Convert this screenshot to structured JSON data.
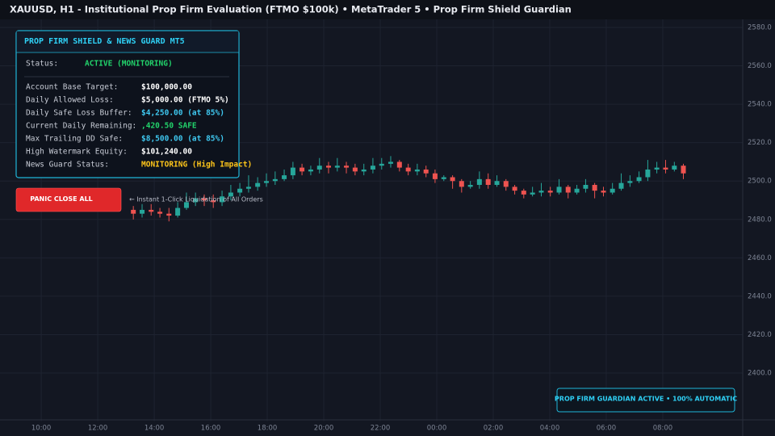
{
  "header": {
    "title": "XAUUSD, H1 - Institutional Prop Firm Evaluation (FTMO $100k)  •  MetaTrader 5  •  Prop Firm Shield Guardian"
  },
  "chart_data": {
    "type": "candlestick",
    "up_color": "#26a69a",
    "down_color": "#ef5350",
    "grid": true,
    "ylim": [
      2375,
      2585
    ],
    "yticks": [
      {
        "value": 2400,
        "label": "2400.0"
      },
      {
        "value": 2420,
        "label": "2420.0"
      },
      {
        "value": 2440,
        "label": "2440.0"
      },
      {
        "value": 2460,
        "label": "2460.0"
      },
      {
        "value": 2480,
        "label": "2480.0"
      },
      {
        "value": 2500,
        "label": "2500.0"
      },
      {
        "value": 2520,
        "label": "2520.0"
      },
      {
        "value": 2540,
        "label": "2540.0"
      },
      {
        "value": 2560,
        "label": "2560.0"
      },
      {
        "value": 2580,
        "label": "2580.0"
      }
    ],
    "xlim": [
      -1.46,
      24.83
    ],
    "xticks": [
      {
        "value": 0,
        "label": "10:00"
      },
      {
        "value": 2,
        "label": "12:00"
      },
      {
        "value": 4,
        "label": "14:00"
      },
      {
        "value": 6,
        "label": "16:00"
      },
      {
        "value": 8,
        "label": "18:00"
      },
      {
        "value": 10,
        "label": "20:00"
      },
      {
        "value": 12,
        "label": "22:00"
      },
      {
        "value": 14,
        "label": "00:00"
      },
      {
        "value": 16,
        "label": "02:00"
      },
      {
        "value": 18,
        "label": "04:00"
      },
      {
        "value": 20,
        "label": "06:00"
      },
      {
        "value": 22,
        "label": "08:00"
      }
    ],
    "x": [
      3.26,
      3.57,
      3.89,
      4.2,
      4.52,
      4.83,
      5.14,
      5.46,
      5.77,
      6.09,
      6.4,
      6.71,
      7.03,
      7.34,
      7.66,
      7.97,
      8.28,
      8.6,
      8.91,
      9.23,
      9.54,
      9.85,
      10.17,
      10.48,
      10.8,
      11.11,
      11.42,
      11.74,
      12.05,
      12.37,
      12.68,
      12.99,
      13.31,
      13.62,
      13.94,
      14.25,
      14.56,
      14.88,
      15.19,
      15.51,
      15.82,
      16.13,
      16.45,
      16.76,
      17.08,
      17.39,
      17.7,
      18.02,
      18.33,
      18.65,
      18.96,
      19.27,
      19.59,
      19.9,
      20.22,
      20.53,
      20.84,
      21.16,
      21.47,
      21.79,
      22.1,
      22.41,
      22.73
    ],
    "open": [
      2485,
      2483,
      2485,
      2484,
      2483,
      2482,
      2486,
      2489,
      2491,
      2490,
      2489,
      2492,
      2494,
      2496,
      2497,
      2499,
      2500,
      2501,
      2503,
      2507,
      2505,
      2506,
      2508,
      2507,
      2508,
      2507,
      2505,
      2506,
      2508,
      2509,
      2510,
      2507,
      2505,
      2506,
      2504,
      2501,
      2502,
      2500,
      2497,
      2498,
      2501,
      2498,
      2500,
      2497,
      2495,
      2493,
      2494,
      2495,
      2494,
      2497,
      2494,
      2496,
      2498,
      2495,
      2494,
      2496,
      2499,
      2500,
      2502,
      2506,
      2507,
      2506,
      2508
    ],
    "high": [
      2487,
      2488,
      2488,
      2486,
      2486,
      2489,
      2494,
      2494,
      2493,
      2493,
      2495,
      2498,
      2499,
      2503,
      2502,
      2504,
      2505,
      2506,
      2510,
      2509,
      2508,
      2512,
      2510,
      2512,
      2510,
      2509,
      2509,
      2512,
      2512,
      2513,
      2511,
      2509,
      2509,
      2508,
      2506,
      2503,
      2503,
      2501,
      2500,
      2505,
      2504,
      2503,
      2501,
      2498,
      2496,
      2497,
      2499,
      2497,
      2501,
      2498,
      2498,
      2501,
      2499,
      2497,
      2499,
      2504,
      2503,
      2505,
      2511,
      2510,
      2511,
      2510,
      2509
    ],
    "low": [
      2480,
      2481,
      2482,
      2481,
      2479,
      2481,
      2485,
      2487,
      2487,
      2486,
      2487,
      2490,
      2492,
      2494,
      2495,
      2497,
      2498,
      2500,
      2501,
      2503,
      2503,
      2504,
      2504,
      2505,
      2504,
      2503,
      2503,
      2504,
      2506,
      2507,
      2505,
      2503,
      2503,
      2502,
      2499,
      2500,
      2496,
      2494,
      2496,
      2496,
      2496,
      2497,
      2495,
      2493,
      2491,
      2492,
      2492,
      2492,
      2493,
      2491,
      2493,
      2494,
      2491,
      2492,
      2493,
      2495,
      2497,
      2499,
      2500,
      2504,
      2504,
      2505,
      2501
    ],
    "close": [
      2483,
      2485,
      2484,
      2483,
      2482,
      2486,
      2489,
      2491,
      2490,
      2489,
      2492,
      2494,
      2496,
      2497,
      2499,
      2500,
      2501,
      2503,
      2507,
      2505,
      2506,
      2508,
      2507,
      2508,
      2507,
      2505,
      2506,
      2508,
      2509,
      2510,
      2507,
      2505,
      2506,
      2504,
      2501,
      2502,
      2500,
      2497,
      2498,
      2501,
      2498,
      2500,
      2497,
      2495,
      2493,
      2494,
      2495,
      2494,
      2497,
      2494,
      2496,
      2498,
      2495,
      2494,
      2496,
      2499,
      2500,
      2502,
      2506,
      2507,
      2506,
      2508,
      2504
    ]
  },
  "panel": {
    "title": "PROP FIRM SHIELD & NEWS GUARD MT5",
    "status_label": "Status:",
    "status_value": "ACTIVE (MONITORING)",
    "status_color": "#22d36b",
    "rows": [
      {
        "label": "Account Base Target:",
        "value": "$100,000.00",
        "color": "#ffffff"
      },
      {
        "label": "Daily Allowed Loss:",
        "value": "$5,000.00 (FTMO 5%)",
        "color": "#ffffff"
      },
      {
        "label": "Daily Safe Loss Buffer:",
        "value": "$4,250.00 (at 85%)",
        "color": "#3fc8f0"
      },
      {
        "label": "Current Daily Remaining:",
        "value": ",420.50 SAFE",
        "color": "#22d36b"
      },
      {
        "label": "Max Trailing DD Safe:",
        "value": "$8,500.00 (at 85%)",
        "color": "#3fc8f0"
      },
      {
        "label": "High Watermark Equity:",
        "value": "$101,240.00",
        "color": "#ffffff"
      },
      {
        "label": "News Guard Status:",
        "value": "MONITORING (High Impact)",
        "color": "#ffc61a"
      }
    ]
  },
  "panic_button": {
    "label": "PANIC CLOSE ALL",
    "note": "← Instant 1-Click Liquidation of All Orders"
  },
  "badge": {
    "text": "PROP FIRM GUARDIAN ACTIVE • 100% AUTOMATIC"
  }
}
